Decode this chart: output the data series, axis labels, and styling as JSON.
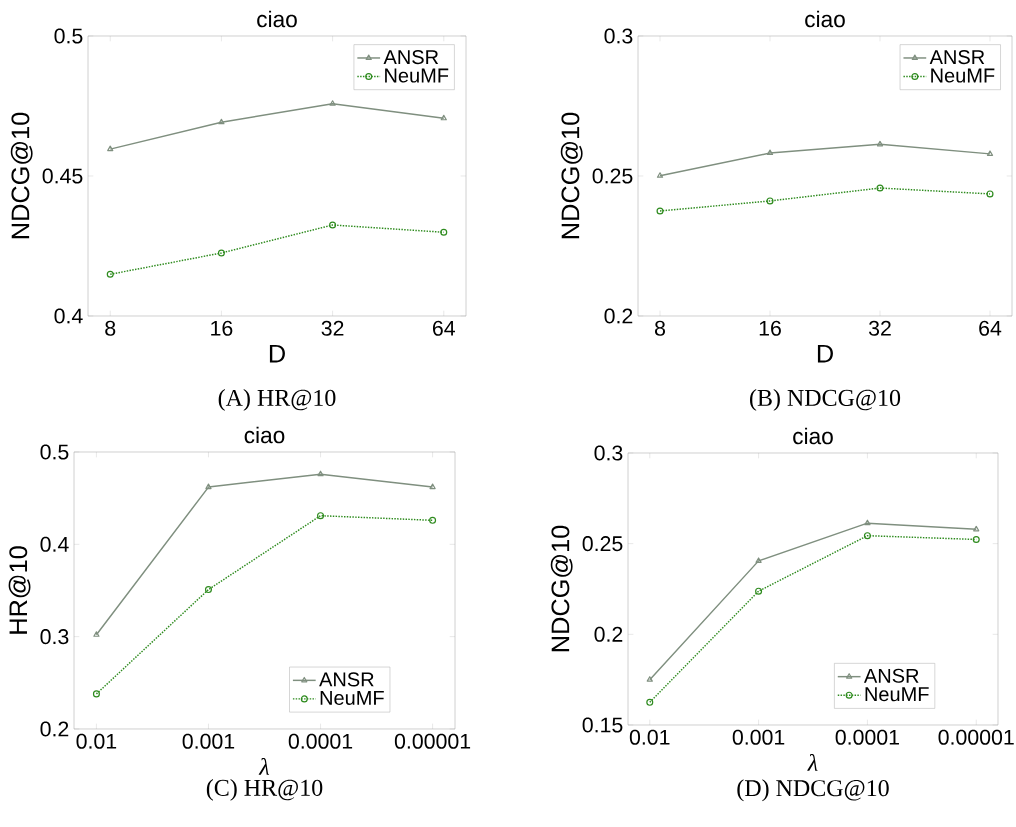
{
  "chart_data": [
    {
      "type": "line",
      "title": "ciao",
      "xlabel": "D",
      "ylabel": "NDCG@10",
      "categories": [
        "8",
        "16",
        "32",
        "64"
      ],
      "ylim": [
        0.4,
        0.5
      ],
      "yticks": [
        0.4,
        0.45,
        0.5
      ],
      "legend": "top right",
      "annotations": [
        "(A) HR@10"
      ],
      "series": [
        {
          "name": "ANSR",
          "color": "#7f8f7f",
          "marker": "triangle",
          "line_style": "solid",
          "values": [
            0.4596,
            0.4692,
            0.4758,
            0.4706
          ]
        },
        {
          "name": "NeuMF",
          "color": "#2e8b1e",
          "marker": "circle",
          "line_style": "dotted",
          "values": [
            0.4149,
            0.4225,
            0.4325,
            0.4299
          ]
        }
      ]
    },
    {
      "type": "line",
      "title": "ciao",
      "xlabel": "D",
      "ylabel": "NDCG@10",
      "categories": [
        "8",
        "16",
        "32",
        "64"
      ],
      "ylim": [
        0.2,
        0.3
      ],
      "yticks": [
        0.2,
        0.25,
        0.3
      ],
      "legend": "top right",
      "annotations": [
        "(B) NDCG@10"
      ],
      "series": [
        {
          "name": "ANSR",
          "color": "#7f8f7f",
          "marker": "triangle",
          "line_style": "solid",
          "values": [
            0.2501,
            0.2582,
            0.2613,
            0.2579
          ]
        },
        {
          "name": "NeuMF",
          "color": "#2e8b1e",
          "marker": "circle",
          "line_style": "dotted",
          "values": [
            0.2375,
            0.2411,
            0.2457,
            0.2436
          ]
        }
      ]
    },
    {
      "type": "line",
      "title": "ciao",
      "xlabel": "λ",
      "ylabel": "HR@10",
      "categories": [
        "0.01",
        "0.001",
        "0.0001",
        "0.00001"
      ],
      "ylim": [
        0.2,
        0.5
      ],
      "yticks": [
        0.2,
        0.3,
        0.4,
        0.5
      ],
      "legend": "bottom right",
      "annotations": [
        "(C) HR@10"
      ],
      "series": [
        {
          "name": "ANSR",
          "color": "#7f8f7f",
          "marker": "triangle",
          "line_style": "solid",
          "values": [
            0.302,
            0.462,
            0.476,
            0.462
          ]
        },
        {
          "name": "NeuMF",
          "color": "#2e8b1e",
          "marker": "circle",
          "line_style": "dotted",
          "values": [
            0.238,
            0.351,
            0.431,
            0.426
          ]
        }
      ]
    },
    {
      "type": "line",
      "title": "ciao",
      "xlabel": "λ",
      "ylabel": "NDCG@10",
      "categories": [
        "0.01",
        "0.001",
        "0.0001",
        "0.00001"
      ],
      "ylim": [
        0.15,
        0.3
      ],
      "yticks": [
        0.15,
        0.2,
        0.25,
        0.3
      ],
      "legend": "bottom right",
      "annotations": [
        "(D) NDCG@10"
      ],
      "series": [
        {
          "name": "ANSR",
          "color": "#7f8f7f",
          "marker": "triangle",
          "line_style": "solid",
          "values": [
            0.175,
            0.2405,
            0.2613,
            0.2579
          ]
        },
        {
          "name": "NeuMF",
          "color": "#2e8b1e",
          "marker": "circle",
          "line_style": "dotted",
          "values": [
            0.1625,
            0.2238,
            0.2544,
            0.2523
          ]
        }
      ]
    }
  ]
}
